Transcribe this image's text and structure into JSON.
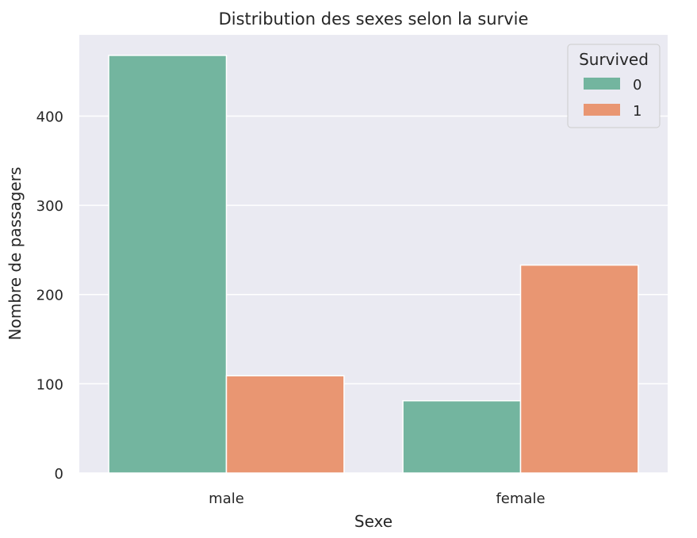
{
  "chart_data": {
    "type": "bar",
    "title": "Distribution des sexes selon la survie",
    "xlabel": "Sexe",
    "ylabel": "Nombre de passagers",
    "categories": [
      "male",
      "female"
    ],
    "ylim": [
      0,
      491
    ],
    "yticks": [
      0,
      100,
      200,
      300,
      400
    ],
    "grid": true,
    "legend": {
      "title": "Survived",
      "placement": "top-right"
    },
    "series": [
      {
        "name": "0",
        "values": [
          468,
          81
        ],
        "color": "#73b59f"
      },
      {
        "name": "1",
        "values": [
          109,
          233
        ],
        "color": "#e99672"
      }
    ],
    "background_color": "#eaeaf2",
    "grid_color": "#ffffff"
  }
}
